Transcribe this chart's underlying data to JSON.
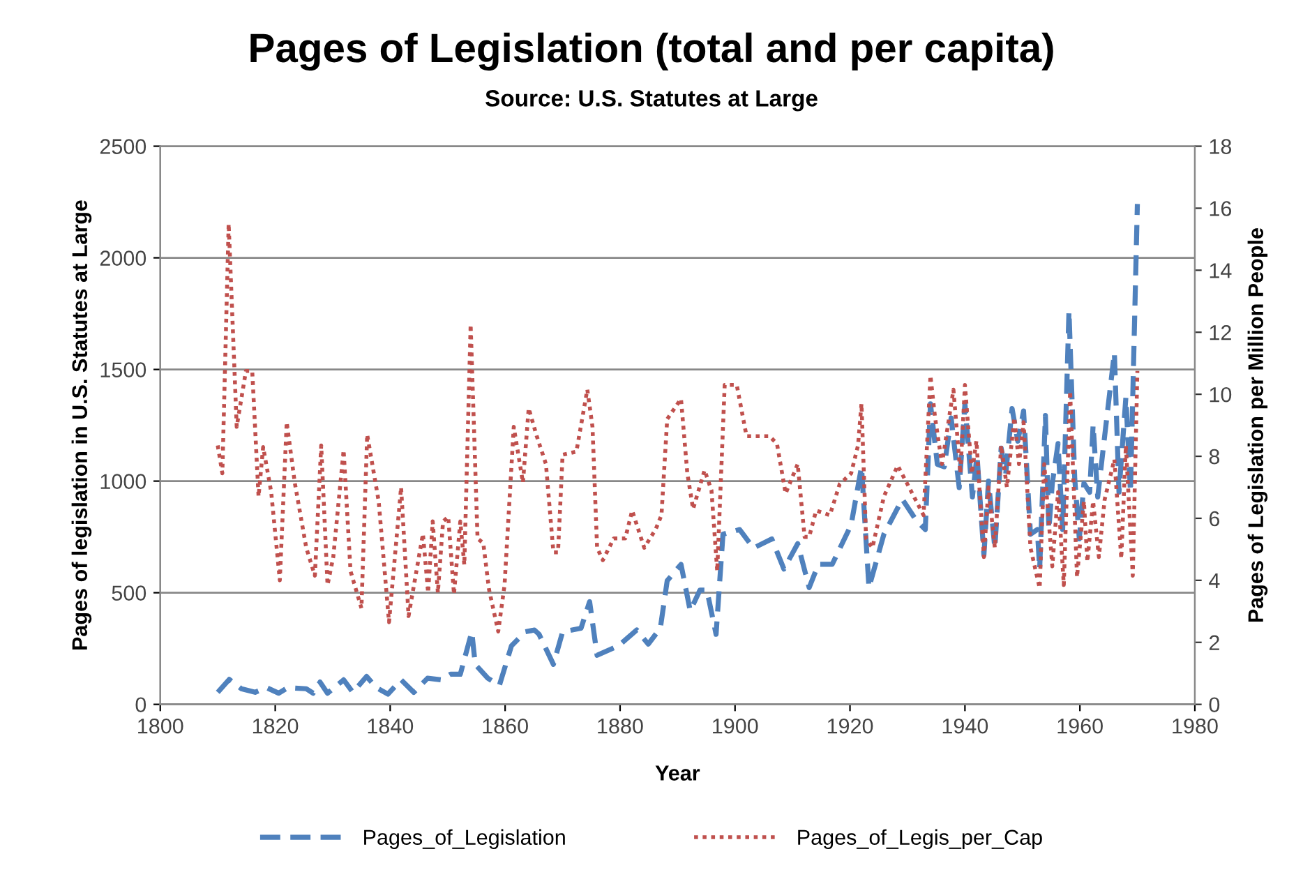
{
  "chart_data": {
    "type": "line",
    "title": "Pages of Legislation (total and per capita)",
    "subtitle": "Source: U.S. Statutes at Large",
    "xlabel": "Year",
    "ylabel": "Pages of legislation in U.S. Statutes at Large",
    "y2label": "Pages of Legislation per Million People",
    "xlim": [
      1800,
      1980
    ],
    "xticks": [
      1800,
      1820,
      1840,
      1860,
      1880,
      1900,
      1920,
      1940,
      1960,
      1980
    ],
    "ylim": [
      0,
      2500
    ],
    "yticks": [
      0,
      500,
      1000,
      1500,
      2000,
      2500
    ],
    "y2lim": [
      0,
      18
    ],
    "y2ticks": [
      0,
      2,
      4,
      6,
      8,
      10,
      12,
      14,
      16,
      18
    ],
    "grid": "y",
    "legend": "bottom",
    "marker": "none",
    "series": [
      {
        "name": "Pages_of_Legislation",
        "color": "#4f81bd",
        "line_style": "dashed",
        "x": [
          1810,
          1812,
          1814.1,
          1816.5,
          1818.5,
          1820.6,
          1822.2,
          1825.4,
          1826.6,
          1827.8,
          1829.1,
          1831.9,
          1833.5,
          1835.9,
          1837.6,
          1839.6,
          1841.9,
          1844.1,
          1846.5,
          1848.9,
          1850.5,
          1852.2,
          1854.2,
          1854.8,
          1857,
          1859,
          1861.1,
          1863.5,
          1865.1,
          1865.9,
          1868.4,
          1870,
          1873.2,
          1874.7,
          1876,
          1879.7,
          1882.9,
          1884.9,
          1887,
          1888.2,
          1890.6,
          1892.2,
          1893.9,
          1895.1,
          1896.7,
          1897.9,
          1900.8,
          1903.2,
          1906.4,
          1908.5,
          1910.9,
          1912.9,
          1914.5,
          1916.9,
          1920.2,
          1922,
          1923.3,
          1925.9,
          1929.1,
          1931.5,
          1933.1,
          1934,
          1935.2,
          1936.4,
          1937.6,
          1939,
          1940,
          1941.3,
          1942.1,
          1943.3,
          1944.1,
          1945.2,
          1946.3,
          1947.1,
          1948.2,
          1949.2,
          1950.2,
          1951.4,
          1952.6,
          1953,
          1954,
          1954.6,
          1955.2,
          1956.2,
          1957,
          1958.1,
          1959.1,
          1959.9,
          1960.7,
          1961.7,
          1962.3,
          1963.1,
          1964.3,
          1966,
          1966.8,
          1968,
          1968.8,
          1970
        ],
        "values": [
          54,
          112,
          70,
          54,
          75,
          50,
          75,
          70,
          50,
          100,
          50,
          110,
          54,
          125,
          75,
          46,
          110,
          54,
          117,
          110,
          135,
          135,
          325,
          179,
          117,
          85,
          262,
          325,
          333,
          314,
          179,
          325,
          341,
          460,
          220,
          262,
          333,
          270,
          341,
          554,
          627,
          419,
          512,
          512,
          314,
          762,
          783,
          700,
          741,
          606,
          720,
          523,
          627,
          627,
          804,
          1064,
          523,
          762,
          919,
          825,
          783,
          1346,
          1075,
          1064,
          1283,
          971,
          1346,
          929,
          1116,
          669,
          1000,
          700,
          1148,
          1033,
          1325,
          1179,
          1314,
          762,
          783,
          606,
          1294,
          783,
          990,
          1168,
          783,
          1762,
          1012,
          741,
          990,
          950,
          1252,
          929,
          1200,
          1575,
          950,
          1375,
          950,
          2241
        ]
      },
      {
        "name": "Pages_of_Legis_per_Cap",
        "color": "#c0504d",
        "line_style": "dotted",
        "axis": "y2",
        "x": [
          1810,
          1810.8,
          1811.9,
          1813.3,
          1814.9,
          1816,
          1817.1,
          1817.9,
          1819.3,
          1820.8,
          1822,
          1823.4,
          1825.4,
          1826.9,
          1828,
          1829.1,
          1830.1,
          1831.9,
          1833.1,
          1835,
          1836,
          1838,
          1839.8,
          1841.9,
          1843.2,
          1845.7,
          1846.6,
          1847.4,
          1848.3,
          1849.2,
          1850.1,
          1851.1,
          1852.2,
          1852.9,
          1854,
          1855.2,
          1856.2,
          1857.2,
          1858.8,
          1859.9,
          1861.5,
          1863.1,
          1864.1,
          1865.5,
          1867.1,
          1868.4,
          1869.2,
          1870,
          1872.4,
          1874.3,
          1875.2,
          1876,
          1877,
          1878.9,
          1880.9,
          1882.1,
          1884.2,
          1886.2,
          1887.2,
          1888.2,
          1890.6,
          1891.7,
          1892.7,
          1894.7,
          1895.9,
          1896.9,
          1898.2,
          1900.3,
          1902,
          1906,
          1907.3,
          1908.8,
          1910.9,
          1912.1,
          1912.9,
          1914.1,
          1916.5,
          1918.2,
          1920.2,
          1921.4,
          1922,
          1922.8,
          1923.9,
          1925.9,
          1928.3,
          1930.7,
          1932.8,
          1934,
          1934.8,
          1936,
          1938,
          1939.2,
          1940,
          1941.2,
          1942,
          1943.3,
          1944.1,
          1945.2,
          1946.3,
          1947.3,
          1948.6,
          1949.4,
          1950.2,
          1951.4,
          1953,
          1953.8,
          1955.2,
          1956.2,
          1957.2,
          1958.3,
          1959.5,
          1960.7,
          1961.3,
          1962.3,
          1963.3,
          1964.3,
          1966,
          1967.2,
          1968,
          1969.2,
          1970
        ],
        "values": [
          8.35,
          7.45,
          15.5,
          8.95,
          10.75,
          10.75,
          6.7,
          8.3,
          6.85,
          4.0,
          9.1,
          7.15,
          5.05,
          4.15,
          8.35,
          3.85,
          4.75,
          8.2,
          4.3,
          3.1,
          8.7,
          6.55,
          2.65,
          7.0,
          2.85,
          5.5,
          3.6,
          5.9,
          3.6,
          5.9,
          6.05,
          3.55,
          5.9,
          4.5,
          12.25,
          5.35,
          5.2,
          3.7,
          2.35,
          3.85,
          8.95,
          7.15,
          9.55,
          8.65,
          7.75,
          4.9,
          4.9,
          8.05,
          8.15,
          10.15,
          8.95,
          5.05,
          4.65,
          5.35,
          5.35,
          6.25,
          5.05,
          5.65,
          6.1,
          9.2,
          9.85,
          7.45,
          6.3,
          7.55,
          6.9,
          4.3,
          10.3,
          10.3,
          8.65,
          8.65,
          8.4,
          6.8,
          7.75,
          5.4,
          5.4,
          6.25,
          6.1,
          7.1,
          7.45,
          8.35,
          9.7,
          5.35,
          5.05,
          6.7,
          7.7,
          6.85,
          6.1,
          10.6,
          9.25,
          7.75,
          10.15,
          7.45,
          10.3,
          7.45,
          8.5,
          4.75,
          7.0,
          5.05,
          8.35,
          7.0,
          9.25,
          7.75,
          9.1,
          5.05,
          3.75,
          7.75,
          4.45,
          6.85,
          3.85,
          10.1,
          4.1,
          6.55,
          4.6,
          6.55,
          4.75,
          6.6,
          7.9,
          4.7,
          8.35,
          4.15,
          10.75
        ]
      }
    ]
  }
}
